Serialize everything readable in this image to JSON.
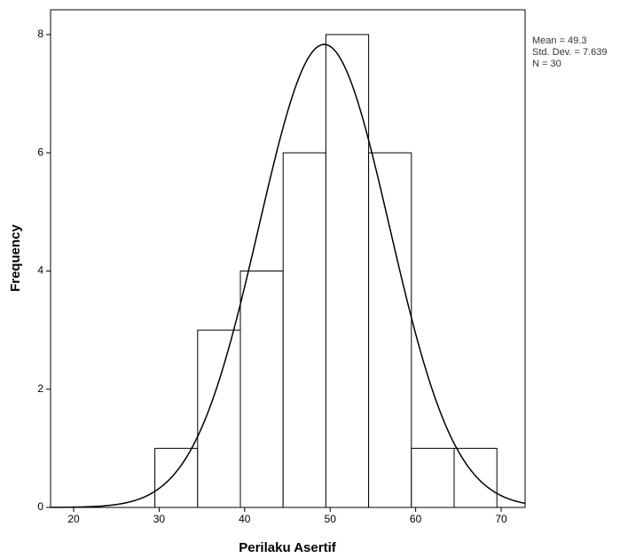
{
  "chart_data": {
    "type": "histogram",
    "x_label": "Perilaku Asertif",
    "y_label": "Frequency",
    "bins": [
      29.5,
      34.5,
      39.5,
      44.5,
      49.5,
      54.5,
      59.5,
      64.5,
      69.5
    ],
    "values": [
      1,
      3,
      4,
      6,
      8,
      6,
      1,
      1
    ],
    "xlim": [
      17.3,
      72.8
    ],
    "ylim": [
      0,
      8.42
    ],
    "xticks": [
      20,
      30,
      40,
      50,
      60,
      70
    ],
    "yticks": [
      0,
      2,
      4,
      6,
      8
    ],
    "color": "#ffffff",
    "edge_color": "#000000",
    "normal_curve": true,
    "stats": [
      {
        "value": 49.3,
        "label": "Mean = 49.3"
      },
      {
        "value": 7.639,
        "label": "Std. Dev. = 7.639"
      },
      {
        "value": 30,
        "label": "N = 30"
      }
    ]
  }
}
